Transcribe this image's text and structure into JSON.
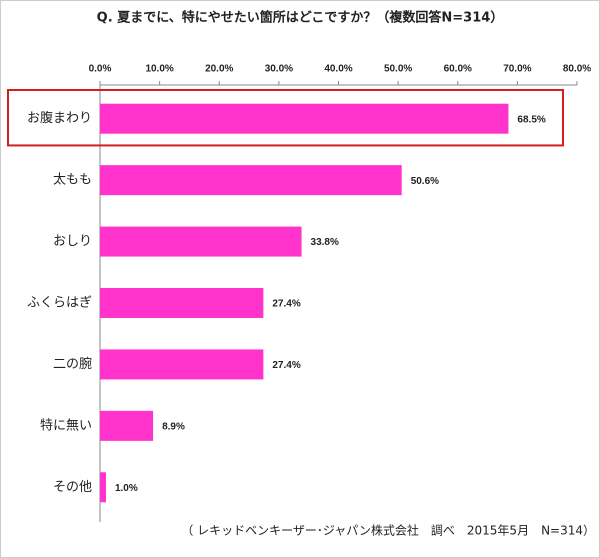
{
  "chart_data": {
    "type": "bar",
    "orientation": "horizontal",
    "title": "Q. 夏までに、特にやせたい箇所はどこですか？（複数回答N=314）",
    "categories": [
      "お腹まわり",
      "太もも",
      "おしり",
      "ふくらはぎ",
      "二の腕",
      "特に無い",
      "その他"
    ],
    "values": [
      68.5,
      50.6,
      33.8,
      27.4,
      27.4,
      8.9,
      1.0
    ],
    "value_labels": [
      "68.5%",
      "50.6%",
      "33.8%",
      "27.4%",
      "27.4%",
      "8.9%",
      "1.0%"
    ],
    "color": "#ff33cc",
    "xlim": [
      0,
      80
    ],
    "xticks": [
      {
        "value": 0,
        "label": "0.0%"
      },
      {
        "value": 10,
        "label": "10.0%"
      },
      {
        "value": 20,
        "label": "20.0%"
      },
      {
        "value": 30,
        "label": "30.0%"
      },
      {
        "value": 40,
        "label": "40.0%"
      },
      {
        "value": 50,
        "label": "50.0%"
      },
      {
        "value": 60,
        "label": "60.0%"
      },
      {
        "value": 70,
        "label": "70.0%"
      },
      {
        "value": 80,
        "label": "80.0%"
      }
    ],
    "source": "（ レキッドベンキーザー･ジャパン株式会社　調べ　2015年5月　N=314）"
  }
}
